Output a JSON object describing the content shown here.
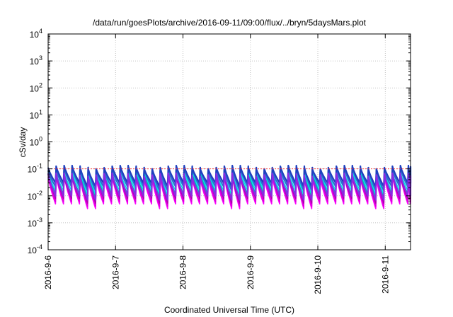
{
  "chart_data": {
    "type": "line",
    "title": "/data/run/goesPlots/archive/2016-09-11/09:00/flux/../bryn/5daysMars.plot",
    "xlabel": "Coordinated Universal Time (UTC)",
    "ylabel": "cSv/day",
    "yscale": "log",
    "ylim": [
      0.0001,
      10000
    ],
    "xlim": [
      "2016-09-06 00:00",
      "2016-09-11 09:00"
    ],
    "grid": true,
    "x_ticks": [
      "2016-9-6",
      "2016-9-7",
      "2016-9-8",
      "2016-9-9",
      "2016-9-10",
      "2016-9-11"
    ],
    "y_ticks": [
      {
        "base": "10",
        "exp": "-4",
        "value": 0.0001
      },
      {
        "base": "10",
        "exp": "-3",
        "value": 0.001
      },
      {
        "base": "10",
        "exp": "-2",
        "value": 0.01
      },
      {
        "base": "10",
        "exp": "-1",
        "value": 0.1
      },
      {
        "base": "10",
        "exp": "0",
        "value": 1
      },
      {
        "base": "10",
        "exp": "1",
        "value": 10
      },
      {
        "base": "10",
        "exp": "2",
        "value": 100
      },
      {
        "base": "10",
        "exp": "3",
        "value": 1000
      },
      {
        "base": "10",
        "exp": "4",
        "value": 10000
      }
    ],
    "reference_line": {
      "value": 0.1,
      "color": "#ff3b3b"
    },
    "cycle_hours": 2.85,
    "series": [
      {
        "color": "#ff00ff",
        "peak": 0.05,
        "trough": 0.005,
        "deep_trough": 0.001
      },
      {
        "color": "#dd00dd",
        "peak": 0.055,
        "trough": 0.006,
        "deep_trough": 0.0013
      },
      {
        "color": "#b000b0",
        "peak": 0.06,
        "trough": 0.008,
        "deep_trough": 0.0016
      },
      {
        "color": "#00b0b0",
        "peak": 0.07,
        "trough": 0.012,
        "deep_trough": 0.003
      },
      {
        "color": "#00e5e5",
        "peak": 0.08,
        "trough": 0.016,
        "deep_trough": 0.004
      },
      {
        "color": "#2a6fd0",
        "peak": 0.1,
        "trough": 0.022,
        "deep_trough": 0.006
      },
      {
        "color": "#1f3fbf",
        "peak": 0.115,
        "trough": 0.03,
        "deep_trough": 0.009
      },
      {
        "color": "#8a2be2",
        "peak": 0.06,
        "trough": 0.01,
        "deep_trough": 0.0025
      }
    ]
  }
}
